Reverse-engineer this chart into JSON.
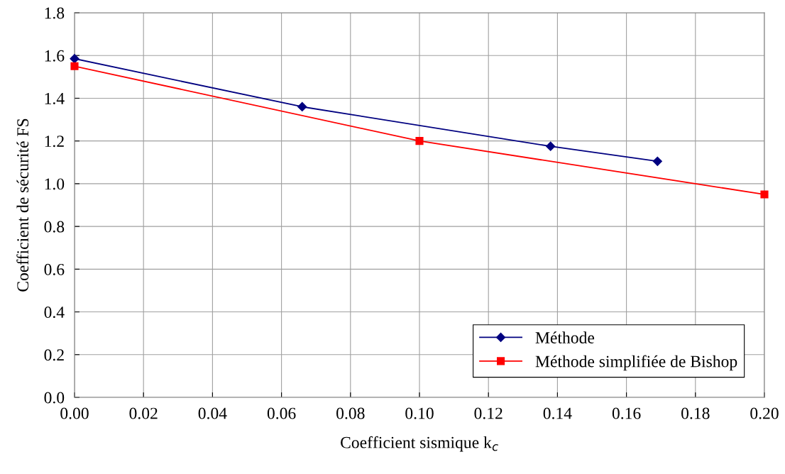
{
  "chart_data": {
    "type": "line",
    "xlabel": "Coefficient sismique k$_{c}$",
    "ylabel": "Coefficient de sécurité FS",
    "series": [
      {
        "name": "Méthode",
        "color": "#000080",
        "marker": "diamond",
        "x": [
          0,
          0.066,
          0.138,
          0.169
        ],
        "values": [
          1.585,
          1.36,
          1.175,
          1.105
        ]
      },
      {
        "name": "Méthode simplifiée de Bishop",
        "color": "#ff0000",
        "marker": "square",
        "x": [
          0,
          0.1,
          0.2
        ],
        "values": [
          1.55,
          1.2,
          0.95
        ]
      }
    ],
    "xlim": [
      0,
      0.2
    ],
    "ylim": [
      0,
      1.8
    ],
    "xticks": [
      {
        "value": 0,
        "label": "0.00"
      },
      {
        "value": 0.02,
        "label": "0.02"
      },
      {
        "value": 0.04,
        "label": "0.04"
      },
      {
        "value": 0.06,
        "label": "0.06"
      },
      {
        "value": 0.08,
        "label": "0.08"
      },
      {
        "value": 0.1,
        "label": "0.10"
      },
      {
        "value": 0.12,
        "label": "0.12"
      },
      {
        "value": 0.14,
        "label": "0.14"
      },
      {
        "value": 0.16,
        "label": "0.16"
      },
      {
        "value": 0.18,
        "label": "0.18"
      },
      {
        "value": 0.2,
        "label": "0.20"
      }
    ],
    "yticks": [
      {
        "value": 0,
        "label": "0.0"
      },
      {
        "value": 0.2,
        "label": "0.2"
      },
      {
        "value": 0.4,
        "label": "0.4"
      },
      {
        "value": 0.6,
        "label": "0.6"
      },
      {
        "value": 0.8,
        "label": "0.8"
      },
      {
        "value": 1,
        "label": "1.0"
      },
      {
        "value": 1.2,
        "label": "1.2"
      },
      {
        "value": 1.4,
        "label": "1.4"
      },
      {
        "value": 1.6,
        "label": "1.6"
      },
      {
        "value": 1.8,
        "label": "1.8"
      }
    ],
    "grid": true,
    "legend": "bottom right"
  }
}
